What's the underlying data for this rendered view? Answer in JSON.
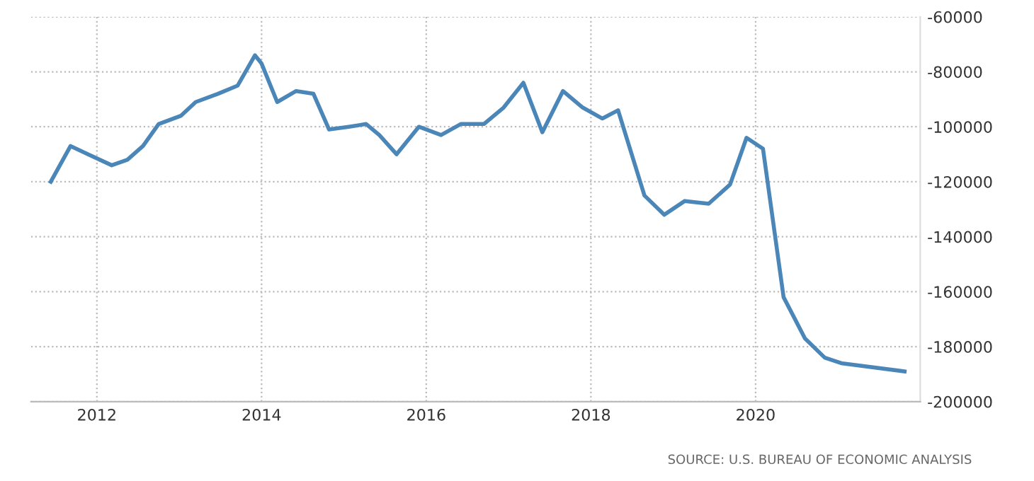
{
  "chart_data": {
    "type": "line",
    "x": [
      2011.44,
      2011.68,
      2011.89,
      2012.18,
      2012.37,
      2012.56,
      2012.75,
      2013.02,
      2013.2,
      2013.47,
      2013.71,
      2013.92,
      2014.0,
      2014.19,
      2014.42,
      2014.63,
      2014.82,
      2015.06,
      2015.27,
      2015.43,
      2015.64,
      2015.91,
      2016.18,
      2016.42,
      2016.7,
      2016.94,
      2017.18,
      2017.41,
      2017.66,
      2017.9,
      2018.14,
      2018.33,
      2018.65,
      2018.89,
      2019.14,
      2019.43,
      2019.69,
      2019.89,
      2020.09,
      2020.34,
      2020.6,
      2020.84,
      2021.04,
      2021.81
    ],
    "series": [
      {
        "color": "#4a86b8",
        "values": [
          -120000,
          -107000,
          -110000,
          -114000,
          -112000,
          -107000,
          -99000,
          -96000,
          -91000,
          -88000,
          -85000,
          -74000,
          -77000,
          -91000,
          -87000,
          -88000,
          -101000,
          -100000,
          -99000,
          -103000,
          -110000,
          -100000,
          -103000,
          -99000,
          -99000,
          -93000,
          -84000,
          -102000,
          -87000,
          -93000,
          -97000,
          -94000,
          -125000,
          -132000,
          -127000,
          -128000,
          -121000,
          -104000,
          -108000,
          -162000,
          -177000,
          -184000,
          -186000,
          -189000
        ]
      }
    ],
    "xlim": [
      2011.2,
      2022.0
    ],
    "xticks": [
      2012,
      2014,
      2016,
      2018,
      2020
    ],
    "ylim": [
      -200000,
      -60000
    ],
    "yticks": [
      -200000,
      -180000,
      -160000,
      -140000,
      -120000,
      -100000,
      -80000,
      -60000
    ],
    "grid": true,
    "legend": false,
    "marker": "none",
    "line_style": "solid",
    "annotations": [
      "SOURCE: U.S. BUREAU OF ECONOMIC ANALYSIS"
    ]
  }
}
